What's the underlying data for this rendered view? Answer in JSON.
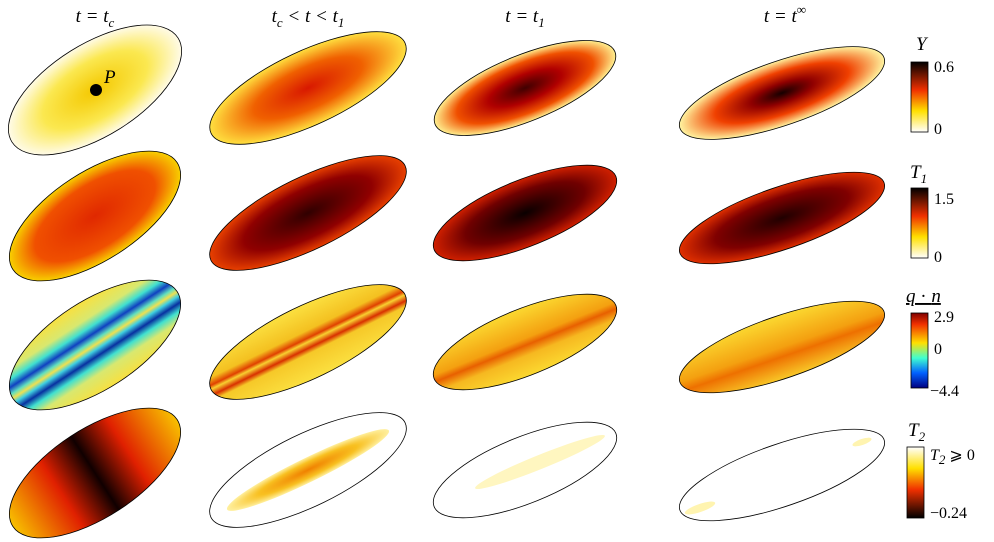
{
  "columns": [
    {
      "title": [
        "t = t",
        "c"
      ]
    },
    {
      "title": [
        "t",
        "c",
        " < t < t",
        "1"
      ]
    },
    {
      "title": [
        "t = t",
        "1"
      ]
    },
    {
      "title": [
        "t = t",
        "∞"
      ]
    }
  ],
  "point_label": "P",
  "rows": [
    {
      "colorbar": {
        "label": [
          "Y"
        ],
        "ticks": [
          "0.6",
          "0"
        ]
      }
    },
    {
      "colorbar": {
        "label": [
          "T",
          "1"
        ],
        "ticks": [
          "1.5",
          "0"
        ]
      }
    },
    {
      "colorbar": {
        "label": [
          "q",
          " · ",
          "n"
        ],
        "ticks": [
          "2.9",
          "0",
          "−4.4"
        ]
      }
    },
    {
      "colorbar": {
        "label": [
          "T",
          "2"
        ],
        "ticks": [
          [
            "T",
            "2",
            " ⩾ 0"
          ],
          "−0.24"
        ]
      }
    }
  ]
}
